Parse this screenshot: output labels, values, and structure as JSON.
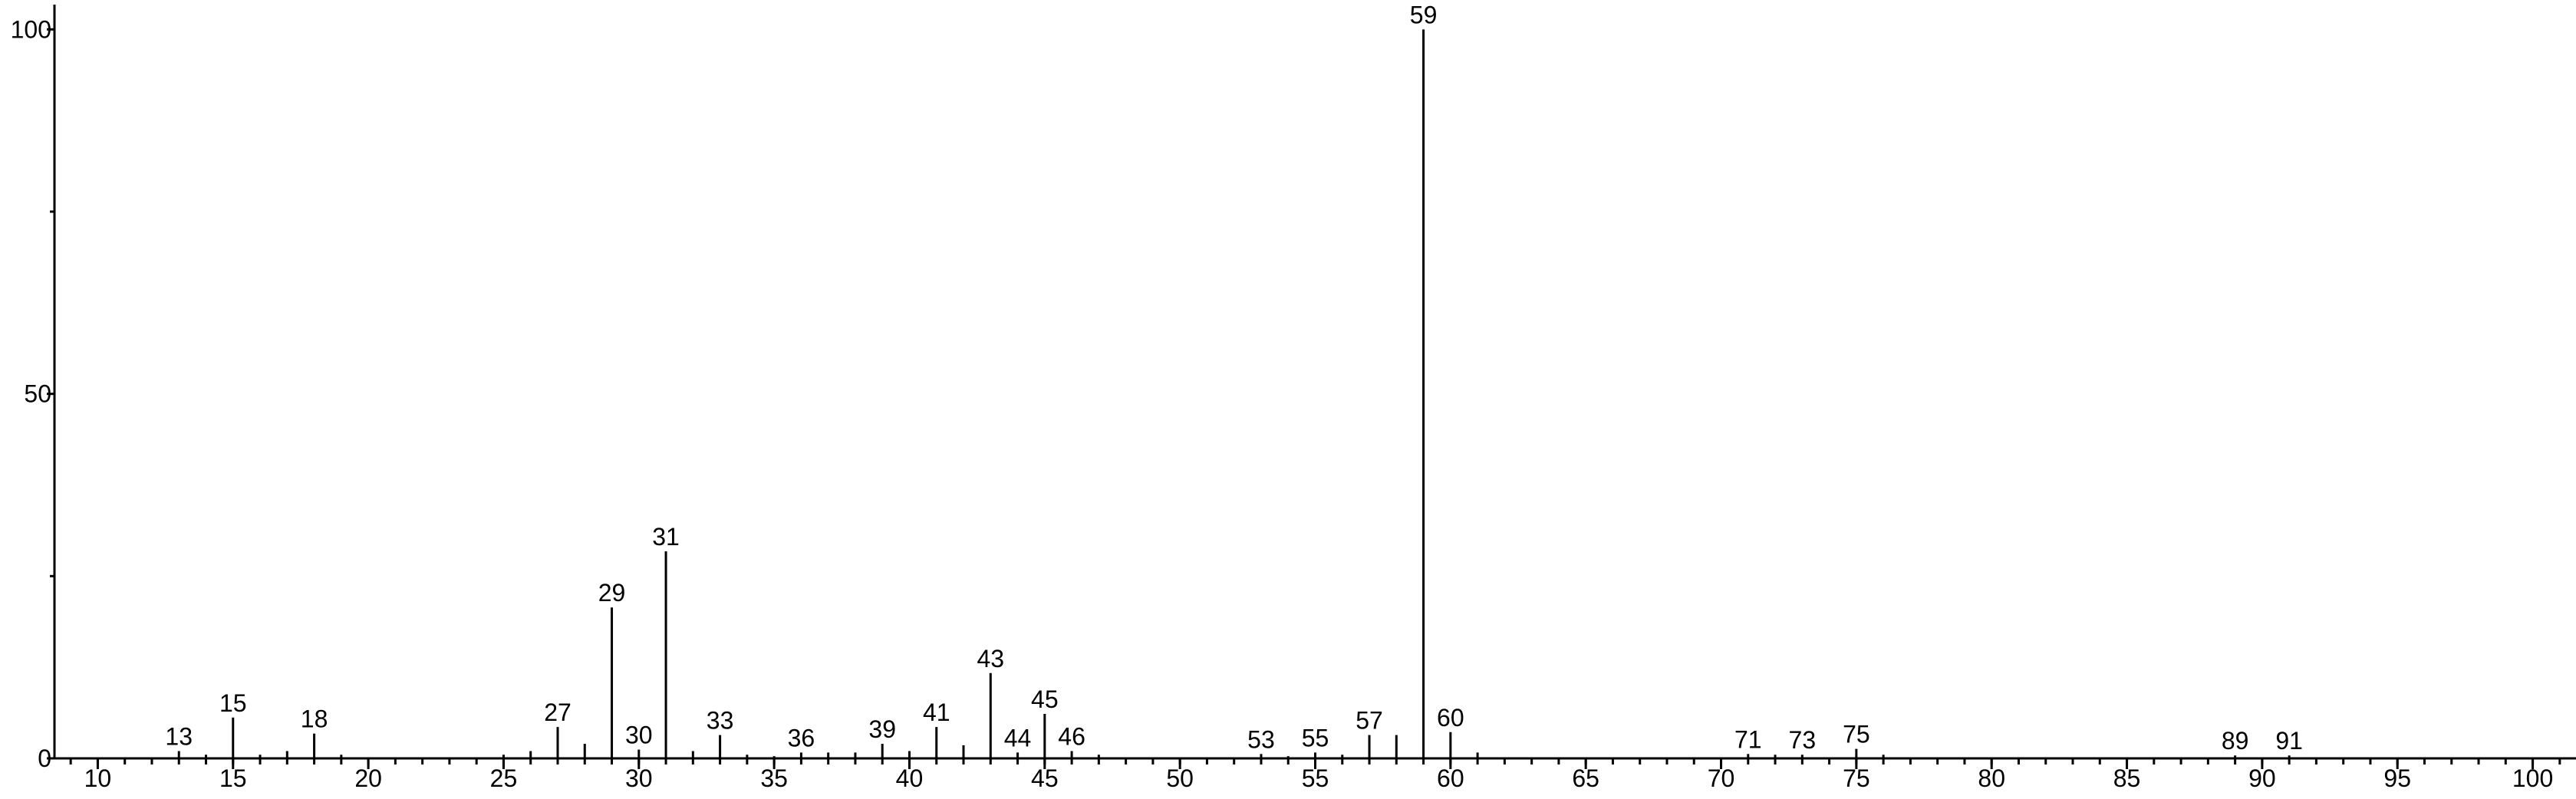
{
  "chart_data": {
    "type": "stem",
    "x": [
      13,
      14,
      15,
      16,
      17,
      18,
      19,
      25,
      26,
      27,
      28,
      29,
      30,
      31,
      32,
      33,
      34,
      35,
      36,
      37,
      38,
      39,
      40,
      41,
      42,
      43,
      44,
      45,
      46,
      47,
      53,
      54,
      55,
      56,
      57,
      58,
      59,
      60,
      61,
      71,
      72,
      73,
      75,
      76,
      89,
      91
    ],
    "values": [
      1,
      0.5,
      5.6,
      0.5,
      1,
      3.4,
      0.5,
      0.5,
      1,
      4.3,
      2,
      20.7,
      1.2,
      28.4,
      1,
      3.2,
      0.5,
      0.3,
      0.8,
      0.8,
      0.8,
      2,
      1,
      4.3,
      1.8,
      11.7,
      0.8,
      6.1,
      1,
      0.5,
      0.6,
      0.3,
      0.8,
      0.5,
      3.2,
      3.2,
      100,
      3.6,
      0.8,
      0.6,
      0.5,
      0.5,
      1.3,
      0.5,
      0.4,
      0.4
    ],
    "labels": [
      13,
      null,
      15,
      null,
      null,
      18,
      null,
      null,
      null,
      27,
      null,
      29,
      30,
      31,
      null,
      33,
      null,
      null,
      36,
      null,
      null,
      39,
      null,
      41,
      null,
      43,
      44,
      45,
      46,
      null,
      53,
      null,
      55,
      null,
      57,
      null,
      59,
      60,
      null,
      71,
      null,
      73,
      75,
      null,
      89,
      91
    ],
    "color": "#000000",
    "xlim": [
      8.4,
      101.6
    ],
    "xticks": [
      10,
      15,
      20,
      25,
      30,
      35,
      40,
      45,
      50,
      55,
      60,
      65,
      70,
      75,
      80,
      85,
      90,
      95,
      100
    ],
    "xminor_step": 1,
    "ylim": [
      0,
      103.4
    ],
    "yticks": [
      0,
      50,
      100
    ],
    "yminorticks": [
      25,
      75
    ]
  }
}
